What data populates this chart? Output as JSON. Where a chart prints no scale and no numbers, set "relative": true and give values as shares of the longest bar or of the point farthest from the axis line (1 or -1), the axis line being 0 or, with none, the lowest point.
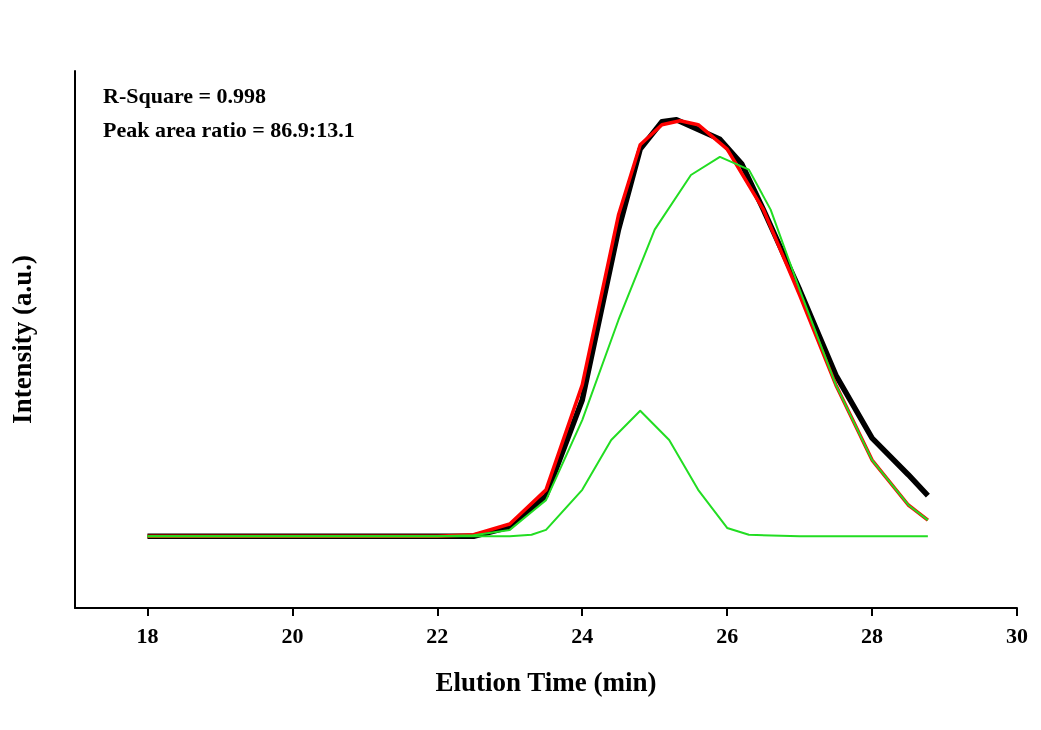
{
  "chart_data": {
    "type": "line",
    "relative": true,
    "xlabel": "Elution Time (min)",
    "ylabel": "Intensity (a.u.)",
    "xlim": [
      17,
      30
    ],
    "xticks": [
      18,
      20,
      22,
      24,
      26,
      28,
      30
    ],
    "grid": false,
    "marker": "none",
    "line_style": "solid",
    "annotations": [
      "R-Square = 0.998",
      "Peak area ratio = 86.9:13.1"
    ],
    "series": [
      {
        "color": "#000000",
        "x": [
          18,
          20,
          22,
          22.5,
          23,
          23.5,
          24,
          24.5,
          24.8,
          25.1,
          25.3,
          25.6,
          25.9,
          26.2,
          26.5,
          27,
          27.5,
          28,
          28.5,
          28.77
        ],
        "values": [
          0.147,
          0.147,
          0.147,
          0.147,
          0.166,
          0.23,
          0.426,
          0.775,
          0.94,
          0.996,
          1,
          0.98,
          0.96,
          0.91,
          0.816,
          0.652,
          0.477,
          0.348,
          0.273,
          0.23
        ]
      },
      {
        "color": "#ff0000",
        "x": [
          18,
          20,
          22,
          22.5,
          23,
          23.5,
          24,
          24.5,
          24.8,
          25.1,
          25.35,
          25.6,
          26,
          26.5,
          27,
          27.5,
          28,
          28.5,
          28.77
        ],
        "values": [
          0.147,
          0.147,
          0.147,
          0.15,
          0.172,
          0.242,
          0.457,
          0.805,
          0.949,
          0.99,
          0.998,
          0.99,
          0.94,
          0.816,
          0.641,
          0.457,
          0.303,
          0.211,
          0.18
        ]
      },
      {
        "color": "#22dd22",
        "x": [
          18,
          20,
          22,
          22.5,
          23,
          23.5,
          24,
          24.5,
          25,
          25.5,
          25.9,
          26.3,
          26.6,
          27,
          27.5,
          28,
          28.5,
          28.77
        ],
        "values": [
          0.147,
          0.147,
          0.147,
          0.149,
          0.16,
          0.221,
          0.385,
          0.59,
          0.775,
          0.887,
          0.924,
          0.898,
          0.816,
          0.652,
          0.457,
          0.303,
          0.211,
          0.18
        ]
      },
      {
        "color": "#22dd22",
        "x": [
          18,
          20,
          22,
          23,
          23.3,
          23.5,
          24,
          24.4,
          24.8,
          25.2,
          25.6,
          26,
          26.3,
          27,
          28,
          28.77
        ],
        "values": [
          0.147,
          0.147,
          0.147,
          0.147,
          0.15,
          0.16,
          0.242,
          0.344,
          0.404,
          0.344,
          0.242,
          0.164,
          0.15,
          0.147,
          0.147,
          0.147
        ]
      }
    ]
  }
}
